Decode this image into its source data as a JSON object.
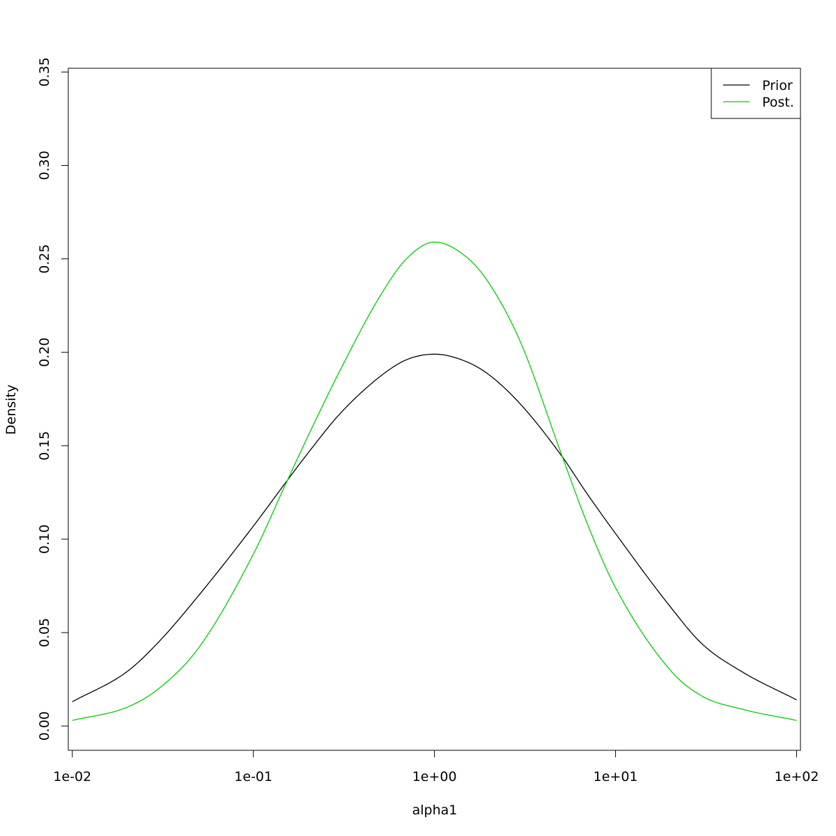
{
  "chart_data": {
    "type": "line",
    "xlabel": "alpha1",
    "ylabel": "Density",
    "x_scale": "log",
    "xlim": [
      0.0095,
      105.0
    ],
    "ylim": [
      -0.013,
      0.352
    ],
    "x_ticks": [
      0.01,
      0.1,
      1,
      10,
      100
    ],
    "x_tick_labels": [
      "1e-02",
      "1e-01",
      "1e+00",
      "1e+01",
      "1e+02"
    ],
    "y_ticks": [
      0.0,
      0.05,
      0.1,
      0.15,
      0.2,
      0.25,
      0.3,
      0.35
    ],
    "y_tick_labels": [
      "0.00",
      "0.05",
      "0.10",
      "0.15",
      "0.20",
      "0.25",
      "0.30",
      "0.35"
    ],
    "legend_position": "top-right",
    "colors": {
      "prior": "#000000",
      "post": "#00cd00"
    },
    "series": [
      {
        "name": "Prior",
        "color": "#000000",
        "x": [
          0.01,
          0.02,
          0.03,
          0.05,
          0.1,
          0.15,
          0.2,
          0.3,
          0.5,
          0.7,
          1,
          1.5,
          2,
          3,
          5,
          7,
          10,
          20,
          30,
          50,
          100
        ],
        "y": [
          0.013,
          0.029,
          0.045,
          0.07,
          0.107,
          0.13,
          0.146,
          0.167,
          0.187,
          0.196,
          0.199,
          0.195,
          0.188,
          0.172,
          0.145,
          0.124,
          0.103,
          0.064,
          0.044,
          0.029,
          0.014
        ]
      },
      {
        "name": "Post.",
        "color": "#00cd00",
        "x": [
          0.01,
          0.02,
          0.03,
          0.05,
          0.1,
          0.15,
          0.2,
          0.3,
          0.5,
          0.7,
          1,
          1.5,
          2,
          3,
          5,
          7,
          10,
          20,
          30,
          50,
          100
        ],
        "y": [
          0.003,
          0.01,
          0.02,
          0.042,
          0.092,
          0.129,
          0.155,
          0.19,
          0.23,
          0.25,
          0.259,
          0.251,
          0.237,
          0.205,
          0.146,
          0.108,
          0.074,
          0.03,
          0.016,
          0.009,
          0.003
        ]
      }
    ]
  }
}
